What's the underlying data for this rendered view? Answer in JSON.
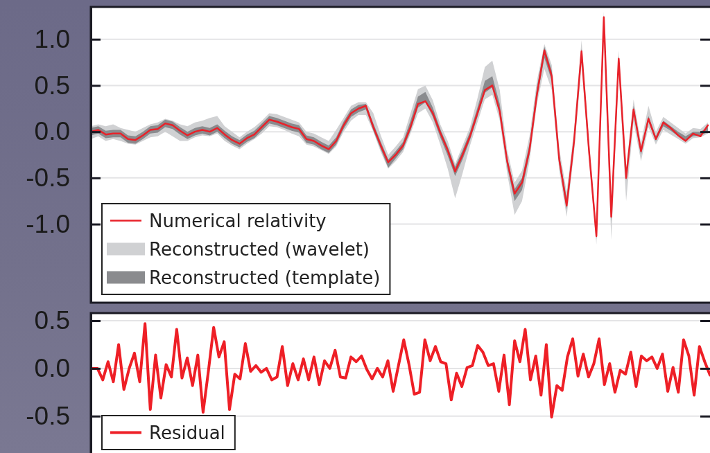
{
  "chart_data": [
    {
      "type": "line",
      "ylim": [
        -1.85,
        1.35
      ],
      "yticks": [
        {
          "value": -1,
          "label": "-1.0"
        },
        {
          "value": -0.5,
          "label": "-0.5"
        },
        {
          "value": 0,
          "label": "0.0"
        },
        {
          "value": 0.5,
          "label": "0.5"
        },
        {
          "value": 1,
          "label": "1.0"
        }
      ],
      "tick_labels": "y",
      "grid": "y",
      "legend": "bottom left",
      "categories": [
        null,
        null,
        null,
        null,
        null,
        null,
        null,
        null,
        null,
        null,
        null,
        null,
        null,
        null,
        null,
        null,
        null,
        null,
        null,
        null,
        null,
        null,
        null,
        null,
        null,
        null,
        null,
        null,
        null,
        null,
        null,
        null,
        null,
        null,
        null,
        null,
        null,
        null,
        null,
        null,
        null,
        null,
        null,
        null,
        null,
        null,
        null,
        null,
        null,
        null,
        null,
        null,
        null,
        null,
        null,
        null,
        null,
        null,
        null,
        null,
        null,
        null,
        null,
        null,
        null,
        null,
        null,
        null,
        null,
        null,
        null,
        null,
        null,
        null,
        null,
        null,
        null,
        null,
        null,
        null,
        null,
        null,
        null,
        null
      ],
      "series": [
        {
          "name": "Numerical relativity",
          "type": "line",
          "color": "#e8222a",
          "values": [
            0,
            0.02,
            -0.03,
            -0.02,
            -0.02,
            -0.08,
            -0.09,
            -0.04,
            0.02,
            0.03,
            0.09,
            0.07,
            0.01,
            -0.04,
            0,
            0.02,
            0,
            0.04,
            -0.03,
            -0.09,
            -0.13,
            -0.07,
            -0.03,
            0.05,
            0.13,
            0.11,
            0.08,
            0.05,
            0.03,
            -0.08,
            -0.1,
            -0.15,
            -0.19,
            -0.1,
            0.07,
            0.2,
            0.25,
            0.28,
            0.05,
            -0.15,
            -0.33,
            -0.25,
            -0.15,
            0.05,
            0.3,
            0.33,
            0.2,
            -0.01,
            -0.2,
            -0.43,
            -0.25,
            -0.05,
            0.2,
            0.45,
            0.5,
            0.22,
            -0.32,
            -0.67,
            -0.55,
            -0.2,
            0.4,
            0.88,
            0.6,
            -0.3,
            -0.8,
            -0.1,
            0.87,
            -0.2,
            -1.13,
            1.24,
            -0.92,
            0.79,
            -0.5,
            0.24,
            -0.21,
            0.14,
            -0.08,
            0.1,
            0.04,
            -0.04,
            -0.1,
            -0.02,
            -0.05,
            0.07
          ]
        },
        {
          "name": "Reconstructed (wavelet)",
          "type": "area",
          "color": "#d0d1d3",
          "values": [
            null,
            null,
            null,
            null,
            null,
            null,
            null,
            null,
            null,
            null,
            null,
            null,
            null,
            null,
            null,
            null,
            null,
            null,
            null,
            null,
            null,
            null,
            null,
            null,
            null,
            null,
            null,
            null,
            null,
            null,
            null,
            null,
            null,
            null,
            null,
            null,
            null,
            null,
            null,
            null,
            null,
            null,
            null,
            null,
            null,
            null,
            null,
            null,
            null,
            null,
            null,
            null,
            null,
            null,
            null,
            null,
            null,
            null,
            null,
            null,
            null,
            null,
            null,
            null,
            null,
            null,
            null,
            null,
            null,
            null,
            null,
            null,
            null,
            null,
            null,
            null,
            null,
            null,
            null,
            null,
            null,
            null,
            null,
            null
          ],
          "lower": [
            -0.08,
            -0.05,
            -0.1,
            -0.08,
            -0.1,
            -0.13,
            -0.14,
            -0.1,
            -0.06,
            -0.05,
            0.0,
            -0.05,
            -0.1,
            -0.1,
            -0.06,
            -0.04,
            -0.05,
            -0.02,
            -0.1,
            -0.15,
            -0.19,
            -0.13,
            -0.08,
            -0.02,
            0.06,
            0.05,
            0.02,
            -0.02,
            -0.05,
            -0.14,
            -0.16,
            -0.2,
            -0.24,
            -0.16,
            0.0,
            0.12,
            0.18,
            0.18,
            0.0,
            -0.22,
            -0.4,
            -0.32,
            -0.22,
            -0.02,
            0.2,
            0.25,
            0.1,
            -0.14,
            -0.4,
            -0.72,
            -0.45,
            -0.15,
            0.1,
            0.35,
            0.4,
            0.12,
            -0.45,
            -0.9,
            -0.75,
            -0.32,
            0.3,
            0.68,
            0.45,
            -0.42,
            -0.92,
            -0.22,
            0.72,
            -0.3,
            -1.22,
            1.05,
            -1.17,
            0.65,
            -0.75,
            0.1,
            -0.32,
            0.05,
            -0.14,
            0.02,
            -0.03,
            -0.08,
            -0.13,
            -0.07,
            -0.06,
            -0.02
          ],
          "upper": [
            0.06,
            0.08,
            0.06,
            0.08,
            0.04,
            0.02,
            0.0,
            0.04,
            0.08,
            0.1,
            0.14,
            0.12,
            0.08,
            0.06,
            0.1,
            0.12,
            0.15,
            0.17,
            0.06,
            0.0,
            -0.06,
            0.0,
            0.05,
            0.12,
            0.2,
            0.19,
            0.16,
            0.13,
            0.1,
            0.0,
            -0.02,
            -0.06,
            -0.1,
            0.02,
            0.15,
            0.28,
            0.32,
            0.32,
            0.2,
            -0.04,
            -0.25,
            -0.16,
            -0.06,
            0.2,
            0.46,
            0.5,
            0.34,
            0.08,
            -0.1,
            -0.35,
            -0.15,
            0.05,
            0.36,
            0.7,
            0.77,
            0.45,
            -0.2,
            -0.55,
            -0.42,
            -0.05,
            0.55,
            0.95,
            0.72,
            -0.18,
            -0.65,
            0.02,
            0.99,
            -0.1,
            -1.05,
            1.3,
            -0.85,
            0.88,
            -0.4,
            0.35,
            -0.12,
            0.28,
            0.0,
            0.16,
            0.1,
            0.04,
            -0.02,
            0.04,
            0.03,
            0.1
          ]
        },
        {
          "name": "Reconstructed (template)",
          "type": "area",
          "color": "#8a8b8e",
          "values": [
            null,
            null,
            null,
            null,
            null,
            null,
            null,
            null,
            null,
            null,
            null,
            null,
            null,
            null,
            null,
            null,
            null,
            null,
            null,
            null,
            null,
            null,
            null,
            null,
            null,
            null,
            null,
            null,
            null,
            null,
            null,
            null,
            null,
            null,
            null,
            null,
            null,
            null,
            null,
            null,
            null,
            null,
            null,
            null,
            null,
            null,
            null,
            null,
            null,
            null,
            null,
            null,
            null,
            null,
            null,
            null,
            null,
            null,
            null,
            null,
            null,
            null,
            null,
            null,
            null,
            null,
            null,
            null,
            null,
            null,
            null,
            null,
            null,
            null,
            null,
            null,
            null,
            null,
            null,
            null,
            null,
            null,
            null,
            null
          ],
          "lower": [
            -0.04,
            -0.02,
            -0.07,
            -0.06,
            -0.06,
            -0.12,
            -0.13,
            -0.08,
            -0.02,
            -0.01,
            0.05,
            0.03,
            -0.03,
            -0.08,
            -0.04,
            -0.02,
            -0.04,
            0.0,
            -0.07,
            -0.13,
            -0.17,
            -0.11,
            -0.07,
            0.01,
            0.09,
            0.07,
            0.04,
            0.01,
            -0.01,
            -0.12,
            -0.14,
            -0.19,
            -0.23,
            -0.14,
            0.03,
            0.16,
            0.21,
            0.24,
            0.01,
            -0.19,
            -0.39,
            -0.29,
            -0.19,
            0.01,
            0.26,
            0.32,
            0.16,
            -0.06,
            -0.26,
            -0.48,
            -0.3,
            -0.09,
            0.16,
            0.42,
            0.48,
            0.2,
            -0.38,
            -0.75,
            -0.63,
            -0.25,
            0.36,
            0.8,
            0.55,
            -0.35,
            -0.84,
            -0.14,
            0.82,
            -0.24,
            -1.16,
            1.18,
            -0.97,
            0.74,
            -0.53,
            0.2,
            -0.25,
            0.11,
            -0.1,
            0.06,
            0.01,
            -0.05,
            -0.09,
            -0.05,
            -0.04,
            0.0
          ],
          "upper": [
            0.04,
            0.06,
            0.01,
            0.02,
            0.02,
            -0.04,
            -0.05,
            0.0,
            0.06,
            0.07,
            0.13,
            0.11,
            0.05,
            0.0,
            0.04,
            0.06,
            0.04,
            0.08,
            0.01,
            -0.05,
            -0.09,
            -0.03,
            0.01,
            0.09,
            0.17,
            0.15,
            0.12,
            0.09,
            0.07,
            -0.04,
            -0.06,
            -0.11,
            -0.15,
            -0.06,
            0.11,
            0.24,
            0.29,
            0.3,
            0.09,
            -0.11,
            -0.3,
            -0.21,
            -0.11,
            0.12,
            0.38,
            0.43,
            0.26,
            0.03,
            -0.16,
            -0.38,
            -0.2,
            0.0,
            0.26,
            0.55,
            0.6,
            0.3,
            -0.28,
            -0.62,
            -0.5,
            -0.13,
            0.48,
            0.92,
            0.66,
            -0.25,
            -0.72,
            -0.05,
            0.9,
            -0.16,
            -1.1,
            1.26,
            -0.88,
            0.82,
            -0.46,
            0.28,
            -0.18,
            0.17,
            -0.05,
            0.12,
            0.06,
            0.0,
            -0.05,
            0.0,
            0.0,
            0.05
          ]
        }
      ]
    },
    {
      "type": "line",
      "ylim": [
        -0.93,
        0.58
      ],
      "yticks": [
        {
          "value": -0.5,
          "label": "-0.5"
        },
        {
          "value": 0,
          "label": "0.0"
        },
        {
          "value": 0.5,
          "label": "0.5"
        }
      ],
      "tick_labels": "y",
      "grid": "y",
      "legend": "bottom left",
      "categories": [
        null,
        null,
        null,
        null,
        null,
        null,
        null,
        null,
        null,
        null,
        null,
        null,
        null,
        null,
        null,
        null,
        null,
        null,
        null,
        null,
        null,
        null,
        null,
        null,
        null,
        null,
        null,
        null,
        null,
        null,
        null,
        null,
        null,
        null,
        null,
        null,
        null,
        null,
        null,
        null,
        null,
        null,
        null,
        null,
        null,
        null,
        null,
        null,
        null,
        null,
        null,
        null,
        null,
        null,
        null,
        null,
        null,
        null,
        null,
        null,
        null,
        null,
        null,
        null,
        null,
        null,
        null,
        null,
        null,
        null,
        null,
        null,
        null,
        null,
        null,
        null,
        null,
        null,
        null,
        null,
        null,
        null,
        null,
        null,
        null,
        null,
        null,
        null,
        null,
        null,
        null,
        null,
        null,
        null,
        null,
        null,
        null,
        null,
        null,
        null,
        null,
        null,
        null,
        null,
        null,
        null,
        null,
        null,
        null,
        null,
        null,
        null,
        null,
        null,
        null,
        null,
        null,
        null
      ],
      "series": [
        {
          "name": "Residual",
          "type": "line",
          "color": "#ee1f26",
          "values": [
            0,
            0,
            -0.12,
            0.07,
            -0.14,
            0.25,
            -0.22,
            0,
            0.16,
            -0.14,
            0.47,
            -0.43,
            0.14,
            -0.31,
            0.04,
            -0.09,
            0.41,
            -0.1,
            0.11,
            -0.18,
            0.14,
            -0.46,
            -0.03,
            0.43,
            0.12,
            0.28,
            -0.43,
            -0.06,
            -0.11,
            0.26,
            -0.03,
            0.03,
            -0.04,
            0,
            -0.12,
            -0.09,
            0.23,
            -0.18,
            0.05,
            -0.12,
            0.1,
            -0.12,
            0.12,
            -0.17,
            0.08,
            0,
            0.19,
            -0.09,
            -0.1,
            0.12,
            0.07,
            0.13,
            -0.01,
            -0.11,
            0,
            -0.09,
            0.08,
            -0.24,
            0.03,
            0.3,
            0.04,
            -0.27,
            -0.25,
            0.3,
            0.08,
            0.23,
            0.07,
            0.05,
            -0.33,
            -0.05,
            -0.19,
            0.01,
            0.03,
            0.24,
            0.17,
            0.03,
            0.05,
            -0.24,
            0.14,
            -0.38,
            0.29,
            0.07,
            0.41,
            -0.12,
            0.13,
            -0.28,
            0.25,
            -0.51,
            -0.18,
            -0.23,
            0.12,
            0.31,
            -0.08,
            0.15,
            -0.09,
            0.05,
            0.31,
            -0.17,
            0.05,
            -0.25,
            -0.02,
            -0.06,
            0.17,
            -0.19,
            0.13,
            0.08,
            0.12,
            0,
            0.15,
            -0.24,
            0.01,
            -0.25,
            0.3,
            0.13,
            -0.28,
            0.23,
            0.07,
            -0.07
          ]
        }
      ]
    }
  ]
}
